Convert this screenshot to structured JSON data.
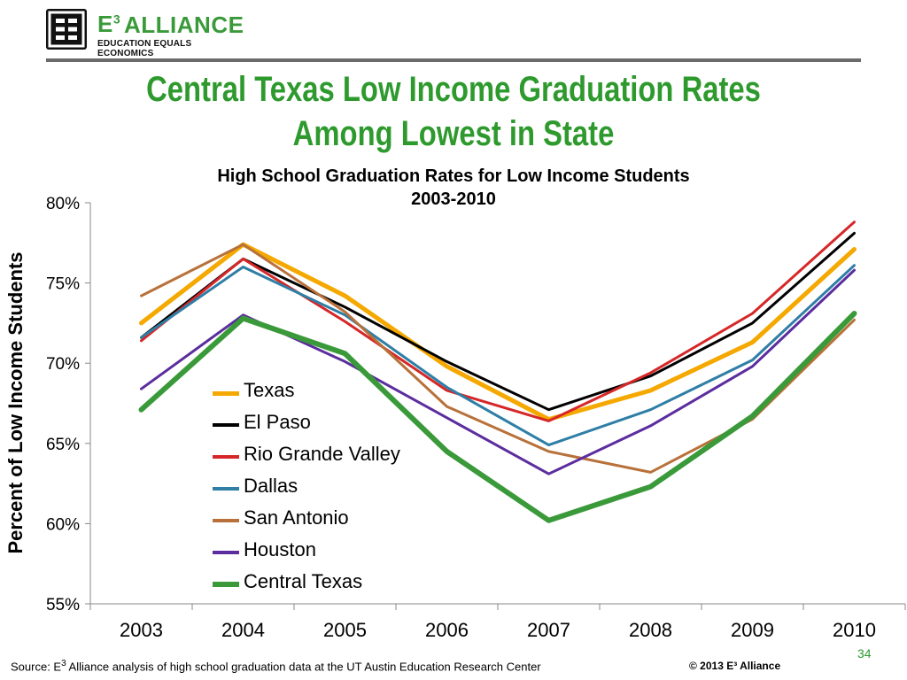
{
  "logo": {
    "mark_text": "E³",
    "brand_e3": "E",
    "brand_sup": "3",
    "brand_name": "ALLIANCE",
    "tagline": "EDUCATION EQUALS ECONOMICS"
  },
  "slide": {
    "title_line1": "Central Texas Low Income Graduation Rates",
    "title_line2": "Among Lowest in State",
    "page_number": "34",
    "copyright": "© 2013 E³ Alliance",
    "source_prefix": "Source: E",
    "source_sup": "3",
    "source_suffix": " Alliance analysis of high school graduation data at the UT Austin Education Research Center"
  },
  "colors": {
    "brand_green": "#2e9a2e",
    "header_rule": "#6b6b6b"
  },
  "chart_data": {
    "type": "line",
    "title": "High School Graduation Rates for Low Income Students",
    "subtitle": "2003-2010",
    "ylabel": "Percent of Low Income Students",
    "xlabel": "",
    "x": [
      "2003",
      "2004",
      "2005",
      "2006",
      "2007",
      "2008",
      "2009",
      "2010"
    ],
    "ylim": [
      55,
      80
    ],
    "yticks": [
      "55%",
      "60%",
      "65%",
      "70%",
      "75%",
      "80%"
    ],
    "ytick_values": [
      55,
      60,
      65,
      70,
      75,
      80
    ],
    "grid": false,
    "legend_position": "center-left",
    "series": [
      {
        "name": "Texas",
        "color": "#f5a800",
        "width": 5,
        "values": [
          72.5,
          77.4,
          74.2,
          69.8,
          66.5,
          68.3,
          71.3,
          77.1
        ]
      },
      {
        "name": "El Paso",
        "color": "#000000",
        "width": 3,
        "values": [
          71.6,
          76.5,
          73.5,
          70.1,
          67.1,
          69.2,
          72.5,
          78.1
        ]
      },
      {
        "name": "Rio Grande Valley",
        "color": "#d62728",
        "width": 3,
        "values": [
          71.4,
          76.5,
          72.6,
          68.3,
          66.4,
          69.4,
          73.1,
          78.8
        ]
      },
      {
        "name": "Dallas",
        "color": "#2e7ea6",
        "width": 3,
        "values": [
          71.6,
          76.0,
          73.0,
          68.5,
          64.9,
          67.1,
          70.2,
          76.1
        ]
      },
      {
        "name": "San Antonio",
        "color": "#b8713a",
        "width": 3,
        "values": [
          74.2,
          77.4,
          73.2,
          67.3,
          64.5,
          63.2,
          66.5,
          72.7
        ]
      },
      {
        "name": "Houston",
        "color": "#5b2d9e",
        "width": 3,
        "values": [
          68.4,
          73.0,
          70.1,
          66.6,
          63.1,
          66.1,
          69.8,
          75.8
        ]
      },
      {
        "name": "Central Texas",
        "color": "#3a9a3a",
        "width": 6,
        "values": [
          67.1,
          72.8,
          70.6,
          64.5,
          60.2,
          62.3,
          66.7,
          73.1
        ]
      }
    ]
  }
}
